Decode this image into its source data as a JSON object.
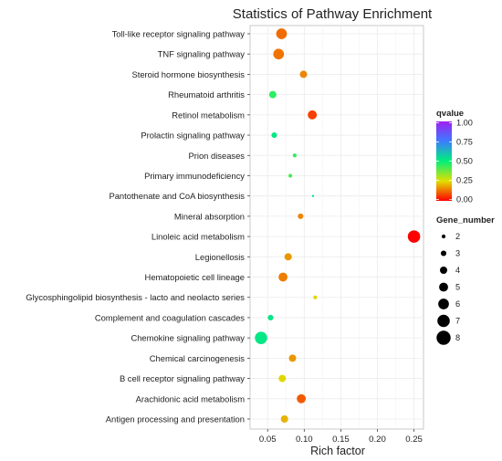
{
  "chart_data": {
    "type": "scatter",
    "title": "Statistics of Pathway Enrichment",
    "xlabel": "Rich factor",
    "ylabel": "",
    "xlim": [
      0.026,
      0.263
    ],
    "xticks": [
      0.05,
      0.1,
      0.15,
      0.2,
      0.25
    ],
    "xtick_labels": [
      "0.05",
      "0.10",
      "0.15",
      "0.20",
      "0.25"
    ],
    "grid": true,
    "legend_placement": "right",
    "categories": [
      "Toll-like receptor signaling pathway",
      "TNF signaling pathway",
      "Steroid hormone biosynthesis",
      "Rheumatoid arthritis",
      "Retinol metabolism",
      "Prolactin signaling pathway",
      "Prion diseases",
      "Primary immunodeficiency",
      "Pantothenate and CoA biosynthesis",
      "Mineral absorption",
      "Linoleic acid metabolism",
      "Legionellosis",
      "Hematopoietic cell lineage",
      "Glycosphingolipid biosynthesis - lacto and neolacto series",
      "Complement and coagulation cascades",
      "Chemokine signaling pathway",
      "Chemical carcinogenesis",
      "B cell receptor signaling pathway",
      "Arachidonic acid metabolism",
      "Antigen processing and presentation"
    ],
    "points": [
      {
        "pathway": "Toll-like receptor signaling pathway",
        "rich_factor": 0.069,
        "qvalue": 0.12,
        "gene_number": 6
      },
      {
        "pathway": "TNF signaling pathway",
        "rich_factor": 0.065,
        "qvalue": 0.13,
        "gene_number": 6
      },
      {
        "pathway": "Steroid hormone biosynthesis",
        "rich_factor": 0.099,
        "qvalue": 0.15,
        "gene_number": 4
      },
      {
        "pathway": "Rheumatoid arthritis",
        "rich_factor": 0.057,
        "qvalue": 0.45,
        "gene_number": 4
      },
      {
        "pathway": "Retinol metabolism",
        "rich_factor": 0.111,
        "qvalue": 0.07,
        "gene_number": 5
      },
      {
        "pathway": "Prolactin signaling pathway",
        "rich_factor": 0.059,
        "qvalue": 0.52,
        "gene_number": 3
      },
      {
        "pathway": "Prion diseases",
        "rich_factor": 0.087,
        "qvalue": 0.45,
        "gene_number": 2
      },
      {
        "pathway": "Primary immunodeficiency",
        "rich_factor": 0.081,
        "qvalue": 0.42,
        "gene_number": 2
      },
      {
        "pathway": "Pantothenate and CoA biosynthesis",
        "rich_factor": 0.112,
        "qvalue": 0.55,
        "gene_number": 1
      },
      {
        "pathway": "Mineral absorption",
        "rich_factor": 0.095,
        "qvalue": 0.15,
        "gene_number": 3
      },
      {
        "pathway": "Linoleic acid metabolism",
        "rich_factor": 0.25,
        "qvalue": 0.0,
        "gene_number": 7
      },
      {
        "pathway": "Legionellosis",
        "rich_factor": 0.078,
        "qvalue": 0.17,
        "gene_number": 4
      },
      {
        "pathway": "Hematopoietic cell lineage",
        "rich_factor": 0.071,
        "qvalue": 0.14,
        "gene_number": 5
      },
      {
        "pathway": "Glycosphingolipid biosynthesis - lacto and neolacto series",
        "rich_factor": 0.115,
        "qvalue": 0.24,
        "gene_number": 2
      },
      {
        "pathway": "Complement and coagulation cascades",
        "rich_factor": 0.054,
        "qvalue": 0.52,
        "gene_number": 3
      },
      {
        "pathway": "Chemokine signaling pathway",
        "rich_factor": 0.041,
        "qvalue": 0.52,
        "gene_number": 7
      },
      {
        "pathway": "Chemical carcinogenesis",
        "rich_factor": 0.084,
        "qvalue": 0.17,
        "gene_number": 4
      },
      {
        "pathway": "B cell receptor signaling pathway",
        "rich_factor": 0.07,
        "qvalue": 0.24,
        "gene_number": 4
      },
      {
        "pathway": "Arachidonic acid metabolism",
        "rich_factor": 0.096,
        "qvalue": 0.1,
        "gene_number": 5
      },
      {
        "pathway": "Antigen processing and presentation",
        "rich_factor": 0.073,
        "qvalue": 0.2,
        "gene_number": 4
      }
    ],
    "color_legend": {
      "title": "qvalue",
      "ticks": [
        "1.00",
        "0.75",
        "0.50",
        "0.25",
        "0.00"
      ],
      "stops": [
        {
          "value": 1.0,
          "color": "#a020f0"
        },
        {
          "value": 0.75,
          "color": "#3a7cff"
        },
        {
          "value": 0.5,
          "color": "#00f07a"
        },
        {
          "value": 0.25,
          "color": "#e0e000"
        },
        {
          "value": 0.0,
          "color": "#ff0000"
        }
      ]
    },
    "size_legend": {
      "title": "Gene_number",
      "values": [
        2,
        3,
        4,
        5,
        6,
        7,
        8
      ],
      "labels": [
        "2",
        "3",
        "4",
        "5",
        "6",
        "7",
        "8"
      ]
    },
    "colors": {
      "panel_background": "#ffffff",
      "grid_line": "#ebebeb",
      "panel_border": "#bdbdbd"
    }
  }
}
